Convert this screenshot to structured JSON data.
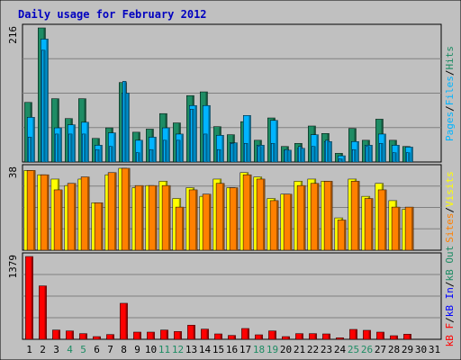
{
  "colors": {
    "frame_bg": "#c0c0c0",
    "title": "#0000c0",
    "gridline": "#808080",
    "hits": "#1e8c64",
    "files": "#00b4ff",
    "pages": "#00b4ff",
    "visits": "#ffff00",
    "sites": "#ff8000",
    "kb_in": "#0000ff",
    "kb_out": "#1e8c64",
    "kb_f": "#ff0000",
    "weekend_label": "#1e8c64",
    "weekday_label": "#000000"
  },
  "chart_data": {
    "type": "bar",
    "title": "Daily usage for February 2012",
    "categories": [
      "1",
      "2",
      "3",
      "4",
      "5",
      "6",
      "7",
      "8",
      "9",
      "10",
      "11",
      "12",
      "13",
      "14",
      "15",
      "16",
      "17",
      "18",
      "19",
      "20",
      "21",
      "22",
      "23",
      "24",
      "25",
      "26",
      "27",
      "28",
      "29",
      "30",
      "31"
    ],
    "weekend_days": [
      "4",
      "5",
      "11",
      "12",
      "18",
      "19",
      "25",
      "26"
    ],
    "panels": [
      {
        "id": "hits_files_pages",
        "max_label": "216",
        "ylim": [
          0,
          216
        ],
        "series": [
          {
            "name": "Hits",
            "color_key": "hits",
            "values": [
              96,
              216,
              102,
              70,
              102,
              38,
              55,
              128,
              48,
              53,
              78,
              63,
              107,
              113,
              57,
              44,
              65,
              35,
              71,
              25,
              30,
              58,
              46,
              14,
              54,
              35,
              69,
              35,
              25,
              null,
              null
            ]
          },
          {
            "name": "Files",
            "color_key": "files",
            "values": [
              72,
              198,
              55,
              60,
              64,
              27,
              47,
              111,
              35,
              40,
              55,
              45,
              91,
              91,
              43,
              31,
              75,
              27,
              67,
              19,
              22,
              44,
              33,
              10,
              33,
              27,
              45,
              27,
              24,
              null,
              null
            ]
          },
          {
            "name": "Pages",
            "color_key": "pages",
            "values": [
              40,
              180,
              45,
              45,
              45,
              20,
              25,
              130,
              15,
              20,
              35,
              35,
              85,
              45,
              20,
              30,
              30,
              25,
              30,
              20,
              25,
              25,
              35,
              5,
              20,
              25,
              30,
              15,
              15,
              null,
              null
            ]
          }
        ]
      },
      {
        "id": "visits_sites",
        "max_label": "38",
        "ylim": [
          0,
          38
        ],
        "series": [
          {
            "name": "Visits",
            "color_key": "visits",
            "values": [
              37,
              35,
              33,
              30,
              33,
              22,
              35,
              38,
              29,
              30,
              32,
              24,
              29,
              25,
              33,
              29,
              36,
              34,
              24,
              26,
              32,
              33,
              32,
              15,
              33,
              25,
              31,
              23,
              19,
              null,
              null
            ]
          },
          {
            "name": "Sites",
            "color_key": "sites",
            "values": [
              37,
              35,
              28,
              31,
              34,
              22,
              36,
              38,
              30,
              30,
              30,
              20,
              28,
              26,
              31,
              29,
              35,
              33,
              23,
              26,
              30,
              31,
              32,
              14,
              32,
              24,
              28,
              20,
              20,
              null,
              null
            ]
          }
        ]
      },
      {
        "id": "kbytes",
        "max_label": "1379",
        "ylim": [
          0,
          1379
        ],
        "series": [
          {
            "name": "KBytes In",
            "color_key": "kb_in",
            "values": [
              60,
              40,
              20,
              20,
              15,
              10,
              15,
              60,
              15,
              15,
              15,
              15,
              30,
              15,
              15,
              15,
              15,
              15,
              15,
              10,
              15,
              15,
              15,
              5,
              15,
              15,
              15,
              10,
              10,
              null,
              null
            ]
          },
          {
            "name": "KBytes Out",
            "color_key": "kb_out",
            "values": [
              90,
              50,
              25,
              25,
              20,
              12,
              20,
              80,
              20,
              20,
              20,
              20,
              35,
              20,
              20,
              20,
              20,
              20,
              20,
              12,
              20,
              20,
              20,
              6,
              20,
              20,
              20,
              12,
              12,
              null,
              null
            ]
          },
          {
            "name": "KBytes F",
            "color_key": "kb_f",
            "values": [
              1379,
              890,
              155,
              140,
              95,
              45,
              80,
              600,
              120,
              120,
              155,
              130,
              235,
              170,
              90,
              65,
              180,
              75,
              140,
              45,
              95,
              95,
              90,
              25,
              165,
              150,
              120,
              60,
              85,
              null,
              null
            ]
          }
        ]
      }
    ],
    "right_labels": {
      "top": [
        {
          "text": "Pages",
          "color_key": "pages"
        },
        {
          "text": "/",
          "color_key": "weekday_label"
        },
        {
          "text": "Files",
          "color_key": "files"
        },
        {
          "text": "/",
          "color_key": "weekday_label"
        },
        {
          "text": "Hits",
          "color_key": "hits"
        }
      ],
      "middle": [
        {
          "text": "Sites",
          "color_key": "sites"
        },
        {
          "text": "/",
          "color_key": "weekday_label"
        },
        {
          "text": "Visits",
          "color_key": "visits"
        }
      ],
      "bottom": [
        {
          "text": "kB F",
          "color_key": "kb_f"
        },
        {
          "text": "/",
          "color_key": "weekday_label"
        },
        {
          "text": "kB In",
          "color_key": "kb_in"
        },
        {
          "text": "/",
          "color_key": "weekday_label"
        },
        {
          "text": "kB Out",
          "color_key": "kb_out"
        }
      ]
    }
  }
}
